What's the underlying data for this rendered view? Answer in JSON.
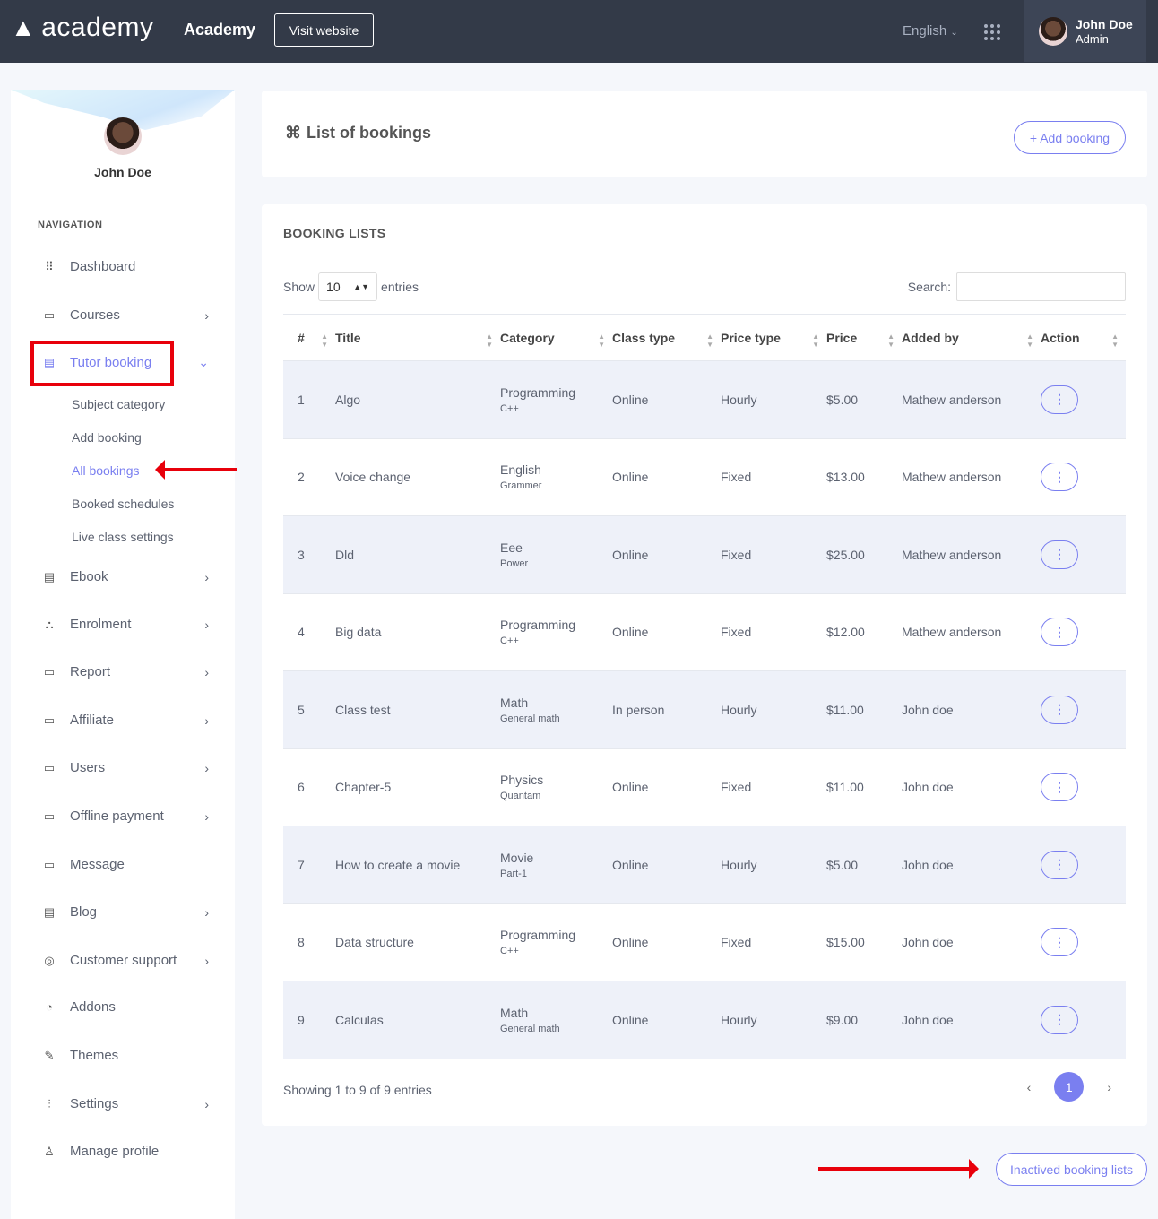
{
  "header": {
    "logo_text": "academy",
    "brand": "Academy",
    "visit_label": "Visit website",
    "language": "English",
    "user_name": "John Doe",
    "user_role": "Admin"
  },
  "sidebar": {
    "user_name": "John Doe",
    "nav_label": "NAVIGATION",
    "items": [
      {
        "label": "Dashboard",
        "icon": "grid-icon"
      },
      {
        "label": "Courses",
        "icon": "archive-icon"
      },
      {
        "label": "Tutor booking",
        "icon": "document-icon"
      },
      {
        "label": "Ebook",
        "icon": "document-icon"
      },
      {
        "label": "Enrolment",
        "icon": "network-icon"
      },
      {
        "label": "Report",
        "icon": "archive-icon"
      },
      {
        "label": "Affiliate",
        "icon": "archive-icon"
      },
      {
        "label": "Users",
        "icon": "archive-icon"
      },
      {
        "label": "Offline payment",
        "icon": "archive-icon"
      },
      {
        "label": "Message",
        "icon": "message-icon"
      },
      {
        "label": "Blog",
        "icon": "document-icon"
      },
      {
        "label": "Customer support",
        "icon": "lifebuoy-icon"
      },
      {
        "label": "Addons",
        "icon": "puzzle-icon"
      },
      {
        "label": "Themes",
        "icon": "brush-icon"
      },
      {
        "label": "Settings",
        "icon": "sliders-icon"
      },
      {
        "label": "Manage profile",
        "icon": "user-icon"
      }
    ],
    "submenu": [
      "Subject category",
      "Add booking",
      "All bookings",
      "Booked schedules",
      "Live class settings"
    ]
  },
  "page": {
    "title": "List of bookings",
    "add_label": "+ Add booking",
    "section": "BOOKING LISTS",
    "show": "Show",
    "entries_value": "10",
    "entries": "entries",
    "search_label": "Search:",
    "search_value": "",
    "showing": "Showing 1 to 9 of 9 entries",
    "current_page": "1",
    "inactive_label": "Inactived booking lists"
  },
  "table": {
    "columns": [
      "#",
      "Title",
      "Category",
      "Class type",
      "Price type",
      "Price",
      "Added by",
      "Action"
    ],
    "rows": [
      [
        "1",
        "Algo",
        "Programming",
        "C++",
        "Online",
        "Hourly",
        "$5.00",
        "Mathew anderson"
      ],
      [
        "2",
        "Voice change",
        "English",
        "Grammer",
        "Online",
        "Fixed",
        "$13.00",
        "Mathew anderson"
      ],
      [
        "3",
        "Dld",
        "Eee",
        "Power",
        "Online",
        "Fixed",
        "$25.00",
        "Mathew anderson"
      ],
      [
        "4",
        "Big data",
        "Programming",
        "C++",
        "Online",
        "Fixed",
        "$12.00",
        "Mathew anderson"
      ],
      [
        "5",
        "Class test",
        "Math",
        "General math",
        "In person",
        "Hourly",
        "$11.00",
        "John doe"
      ],
      [
        "6",
        "Chapter-5",
        "Physics",
        "Quantam",
        "Online",
        "Fixed",
        "$11.00",
        "John doe"
      ],
      [
        "7",
        "How to create a movie",
        "Movie",
        "Part-1",
        "Online",
        "Hourly",
        "$5.00",
        "John doe"
      ],
      [
        "8",
        "Data structure",
        "Programming",
        "C++",
        "Online",
        "Fixed",
        "$15.00",
        "John doe"
      ],
      [
        "9",
        "Calculas",
        "Math",
        "General math",
        "Online",
        "Hourly",
        "$9.00",
        "John doe"
      ]
    ]
  },
  "colors": {
    "header": "#333a48",
    "accent": "#7a7ff0",
    "annotation": "#e8000b"
  }
}
